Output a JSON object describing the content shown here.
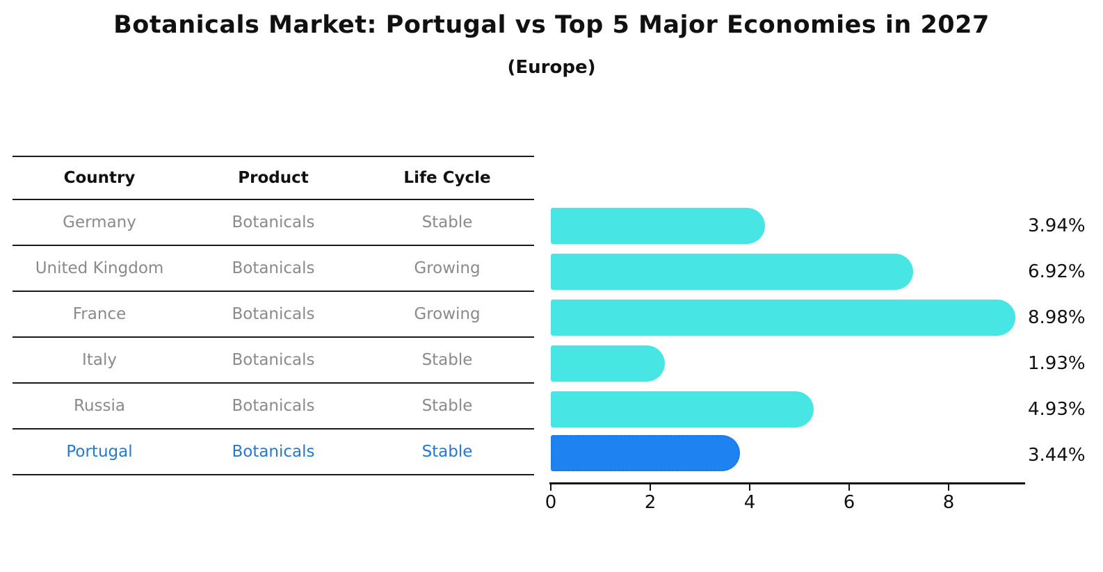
{
  "title": "Botanicals Market: Portugal vs Top 5 Major Economies in 2027",
  "subtitle": "(Europe)",
  "table": {
    "headers": [
      "Country",
      "Product",
      "Life Cycle"
    ],
    "rows": [
      {
        "country": "Germany",
        "product": "Botanicals",
        "life_cycle": "Stable"
      },
      {
        "country": "United Kingdom",
        "product": "Botanicals",
        "life_cycle": "Growing"
      },
      {
        "country": "France",
        "product": "Botanicals",
        "life_cycle": "Growing"
      },
      {
        "country": "Italy",
        "product": "Botanicals",
        "life_cycle": "Stable"
      },
      {
        "country": "Russia",
        "product": "Botanicals",
        "life_cycle": "Stable"
      },
      {
        "country": "Portugal",
        "product": "Botanicals",
        "life_cycle": "Stable"
      }
    ],
    "highlighted_row": "Portugal"
  },
  "chart_data": {
    "type": "bar",
    "orientation": "horizontal",
    "title": "Botanicals Market: Portugal vs Top 5 Major Economies in 2027 (Europe)",
    "categories": [
      "Germany",
      "United Kingdom",
      "France",
      "Italy",
      "Russia",
      "Portugal"
    ],
    "values": [
      3.94,
      6.92,
      8.98,
      1.93,
      4.93,
      3.44
    ],
    "value_labels": [
      "3.94%",
      "6.92%",
      "8.98%",
      "1.93%",
      "4.93%",
      "3.44%"
    ],
    "unit": "%",
    "x_ticks": [
      "0",
      "2",
      "4",
      "6",
      "8"
    ],
    "xlim": [
      0,
      9.5
    ],
    "grid": false,
    "legend": false,
    "bar_color": "#48e5e5",
    "highlight_color": "#1e82f0",
    "highlight_text_color": "#2578d0",
    "highlight_category": "Portugal"
  }
}
